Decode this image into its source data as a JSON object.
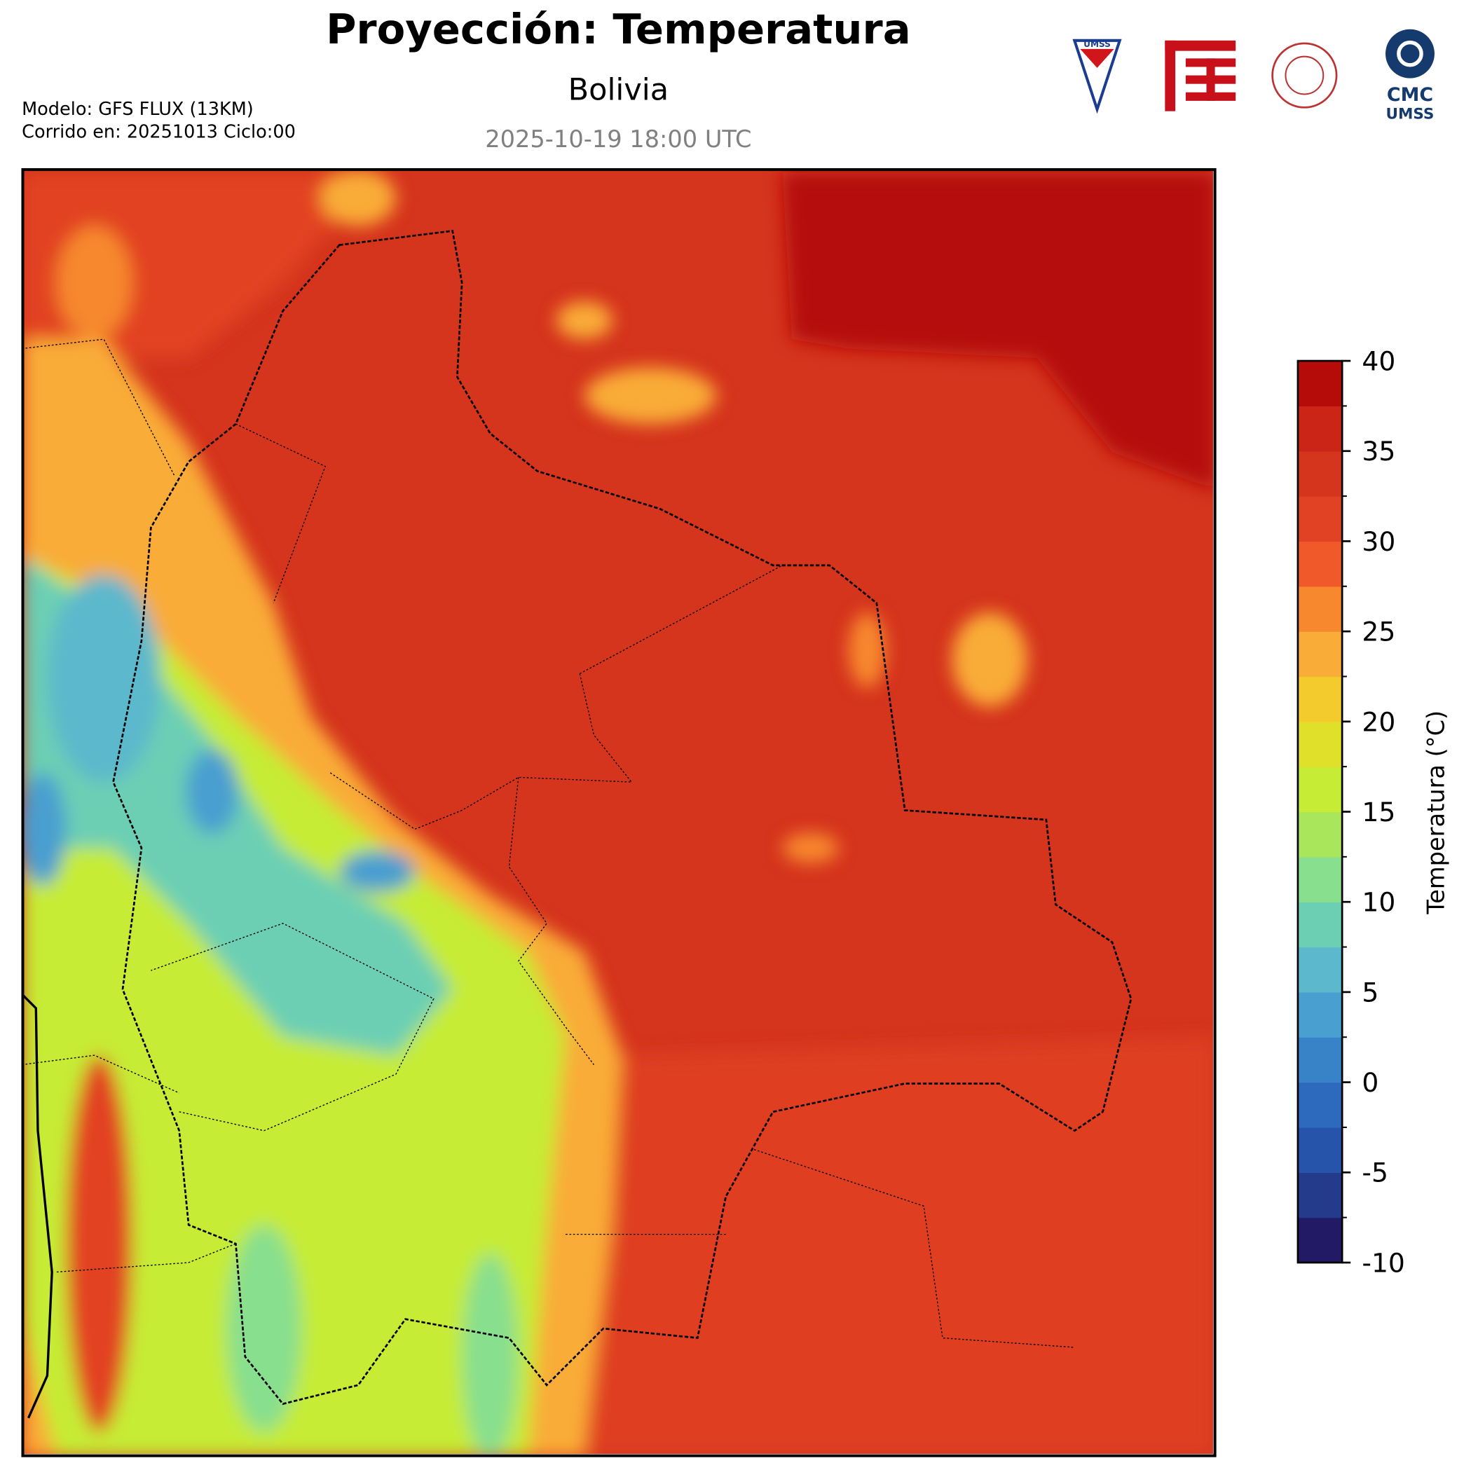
{
  "header": {
    "title": "Proyección: Temperatura",
    "subtitle": "Bolivia",
    "datetime": "2025-10-19 18:00 UTC",
    "model": "Modelo: GFS FLUX (13KM)",
    "run": "Corrido en: 20251013 Ciclo:00"
  },
  "logos": {
    "shield": "UMSS",
    "cmc": "CMC",
    "cmc_sub": "UMSS"
  },
  "colorbar": {
    "label": "Temperatura (°C)",
    "range": [
      -10,
      40
    ],
    "ticks": [
      -10,
      -5,
      0,
      5,
      10,
      15,
      20,
      25,
      30,
      35,
      40
    ],
    "colors": [
      "#231a66",
      "#243a8a",
      "#2654aa",
      "#2d6abe",
      "#3883c8",
      "#489fd0",
      "#5cb8cc",
      "#6ccfb4",
      "#88df8e",
      "#a9e65c",
      "#c6ec35",
      "#e0e02b",
      "#f4cb2d",
      "#f9ac37",
      "#f7882e",
      "#f0592a",
      "#e24224",
      "#d5341d",
      "#cb2518",
      "#b50c0a"
    ]
  }
}
